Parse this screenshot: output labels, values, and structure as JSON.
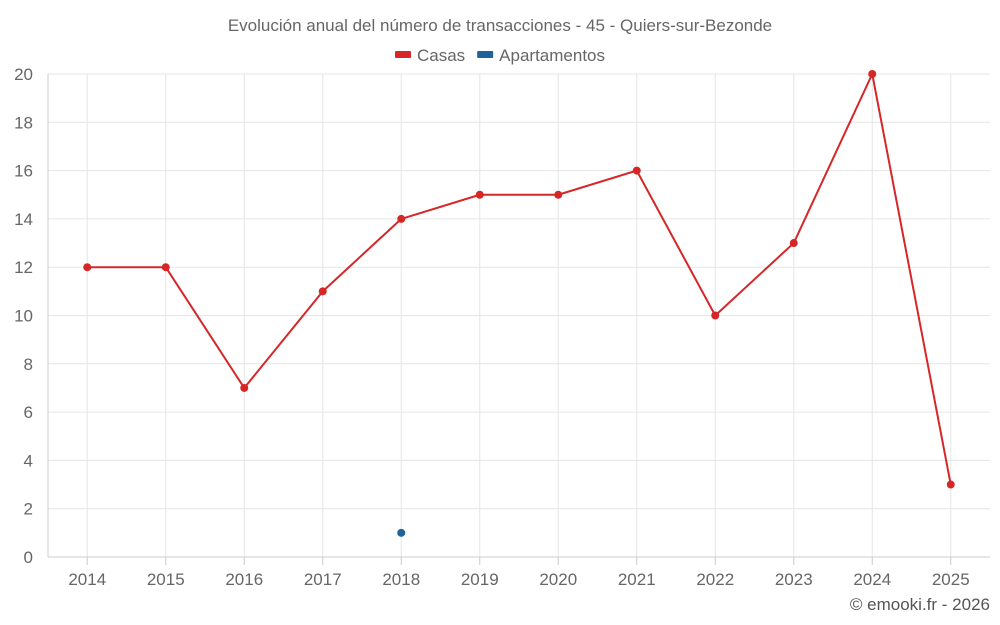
{
  "chart_data": {
    "type": "line",
    "title": "Evolución anual del número de transacciones - 45 - Quiers-sur-Bezonde",
    "categories": [
      "2014",
      "2015",
      "2016",
      "2017",
      "2018",
      "2019",
      "2020",
      "2021",
      "2022",
      "2023",
      "2024",
      "2025"
    ],
    "series": [
      {
        "name": "Casas",
        "color": "#d62728",
        "values": [
          12,
          12,
          7,
          11,
          14,
          15,
          15,
          16,
          10,
          13,
          20,
          3
        ]
      },
      {
        "name": "Apartamentos",
        "color": "#1f6199",
        "values": [
          null,
          null,
          null,
          null,
          1,
          null,
          null,
          null,
          null,
          null,
          null,
          null
        ]
      }
    ],
    "ylim": [
      0,
      20
    ],
    "yticks": [
      0,
      2,
      4,
      6,
      8,
      10,
      12,
      14,
      16,
      18,
      20
    ],
    "grid": true,
    "legend": "top-center",
    "xlabel": "",
    "ylabel": ""
  },
  "credit": "© emooki.fr - 2026"
}
